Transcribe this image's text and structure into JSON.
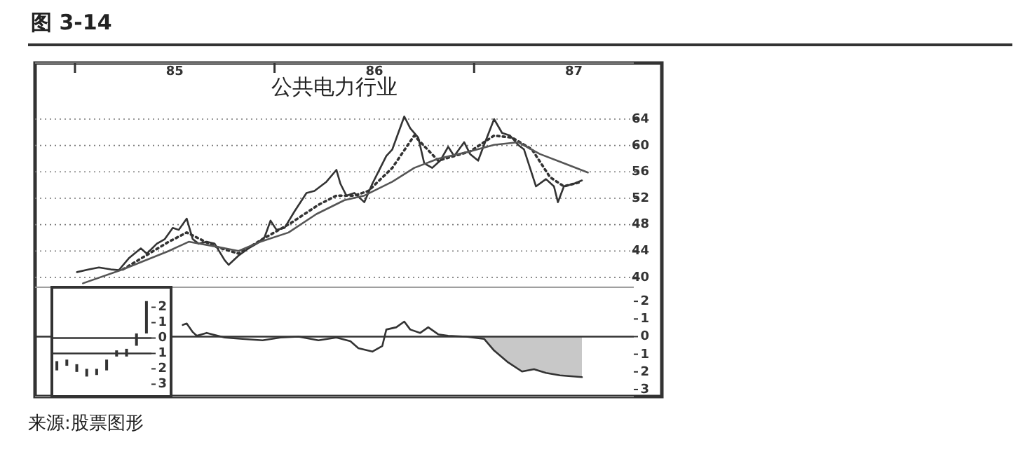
{
  "chart_data": [
    {
      "type": "line",
      "title": "公共电力行业",
      "annotations": [
        "图 3-14",
        "来源:股票图形"
      ],
      "xlim": [
        84.3,
        87.3
      ],
      "ylim": [
        38.5,
        72.5
      ],
      "xticks": [
        {
          "value": 84.5,
          "label": null
        },
        85,
        {
          "value": 85.5,
          "label": null
        },
        86,
        {
          "value": 86.5,
          "label": null
        },
        87
      ],
      "yticks": [
        40,
        44,
        48,
        52,
        56,
        60,
        64
      ],
      "grid": "y",
      "series": [
        {
          "color": "#333333",
          "x": [
            84.51,
            84.57,
            84.62,
            84.68,
            84.72,
            84.77,
            84.83,
            84.86,
            84.91,
            84.95,
            84.99,
            85.02,
            85.06,
            85.09,
            85.12,
            85.16,
            85.2,
            85.25,
            85.27,
            85.32,
            85.37,
            85.41,
            85.45,
            85.48,
            85.51,
            85.55,
            85.6,
            85.66,
            85.7,
            85.76,
            85.81,
            85.83,
            85.86,
            85.9,
            85.95,
            85.99,
            86.06,
            86.09,
            86.15,
            86.18,
            86.22,
            86.25,
            86.29,
            86.33,
            86.37,
            86.4,
            86.45,
            86.48,
            86.52,
            86.55,
            86.6,
            86.64,
            86.68,
            86.72,
            86.75,
            86.81,
            86.86,
            86.9,
            86.92,
            86.95,
            87.0,
            87.04
          ],
          "values": [
            40.8,
            41.2,
            41.5,
            41.2,
            41.1,
            42.9,
            44.4,
            43.6,
            45.1,
            45.8,
            47.5,
            47.2,
            48.9,
            45.8,
            45.1,
            45.4,
            45.1,
            42.6,
            41.9,
            43.3,
            44.4,
            45.1,
            46.1,
            48.6,
            47.2,
            47.5,
            50.0,
            52.8,
            53.1,
            54.5,
            56.3,
            54.2,
            52.4,
            52.8,
            51.4,
            54.2,
            58.4,
            59.4,
            64.4,
            62.6,
            61.2,
            57.3,
            56.6,
            57.7,
            59.8,
            58.4,
            60.5,
            58.7,
            57.7,
            60.1,
            64.0,
            61.9,
            61.5,
            60.1,
            59.4,
            53.8,
            54.9,
            53.8,
            51.4,
            53.8,
            54.2,
            54.7
          ]
        },
        {
          "color": "#333333",
          "line_style": "dotted",
          "x": [
            84.74,
            84.97,
            85.06,
            85.2,
            85.32,
            85.44,
            85.58,
            85.72,
            85.81,
            85.9,
            85.97,
            86.09,
            86.2,
            86.32,
            86.48,
            86.6,
            86.69,
            86.79,
            86.88,
            86.95,
            87.04
          ],
          "values": [
            41.2,
            45.4,
            46.8,
            44.7,
            43.6,
            45.8,
            48.2,
            51.0,
            52.4,
            52.4,
            53.1,
            56.6,
            61.5,
            57.7,
            59.1,
            61.5,
            61.2,
            59.4,
            55.2,
            53.8,
            54.5
          ]
        },
        {
          "color": "#555555",
          "x": [
            84.54,
            84.74,
            84.97,
            85.07,
            85.2,
            85.32,
            85.43,
            85.57,
            85.71,
            85.85,
            85.95,
            86.09,
            86.2,
            86.32,
            86.48,
            86.6,
            86.72,
            86.83,
            86.95,
            87.07
          ],
          "values": [
            39.1,
            41.2,
            44.0,
            45.4,
            44.7,
            44.0,
            45.4,
            46.8,
            49.6,
            51.7,
            52.4,
            54.5,
            56.6,
            58.0,
            59.1,
            60.1,
            60.5,
            58.7,
            57.3,
            55.9
          ]
        }
      ]
    },
    {
      "type": "line",
      "xlim": [
        84.3,
        87.3
      ],
      "ylim": [
        -3.4,
        2.8
      ],
      "tick_labels": "y",
      "yticks": [
        2,
        1,
        0,
        {
          "value": -1,
          "label": "1"
        },
        {
          "value": -2,
          "label": "2"
        },
        {
          "value": -3,
          "label": "3"
        }
      ],
      "ref_lines": [
        {
          "axis": "y",
          "value": 0,
          "color": "#333333"
        }
      ],
      "bands": [
        {
          "axis": "x",
          "from": 86.53,
          "to": 87.04,
          "color": "#c8c8c8"
        }
      ],
      "series": [
        {
          "color": "#333333",
          "x": [
            85.04,
            85.06,
            85.09,
            85.11,
            85.16,
            85.25,
            85.34,
            85.44,
            85.53,
            85.62,
            85.72,
            85.81,
            85.88,
            85.92,
            85.99,
            86.04,
            86.06,
            86.11,
            86.15,
            86.18,
            86.23,
            86.27,
            86.32,
            86.37,
            86.46,
            86.55,
            86.6,
            86.67,
            86.74,
            86.8,
            86.86,
            86.93,
            87.04
          ],
          "values": [
            0.66,
            0.74,
            0.26,
            0.05,
            0.21,
            -0.05,
            -0.13,
            -0.21,
            -0.05,
            0,
            -0.21,
            -0.05,
            -0.26,
            -0.66,
            -0.85,
            -0.53,
            0.4,
            0.53,
            0.85,
            0.4,
            0.21,
            0.53,
            0.13,
            0.05,
            0,
            -0.13,
            -0.79,
            -1.46,
            -1.98,
            -1.85,
            -2.06,
            -2.2,
            -2.3
          ]
        }
      ]
    },
    {
      "type": "bar",
      "color": "#333333",
      "categories": [
        null,
        null,
        null,
        null,
        null,
        null,
        null,
        null,
        null,
        null
      ],
      "values": [
        0.6,
        0.4,
        0.5,
        0.5,
        0.4,
        0.7,
        0.4,
        0.5,
        0.8,
        2.1
      ],
      "base": [
        -2.1,
        -1.8,
        -2.2,
        -2.5,
        -2.4,
        -2.1,
        -1.2,
        -1.2,
        -0.5,
        0.3
      ],
      "ylim": [
        -3.8,
        3.3
      ],
      "yticks": [
        2,
        1,
        0,
        {
          "value": -1,
          "label": "1"
        },
        {
          "value": -2,
          "label": "2"
        },
        {
          "value": -3,
          "label": "3"
        }
      ],
      "ref_lines": [
        {
          "axis": "y",
          "value": 0,
          "color": "#333333"
        },
        {
          "axis": "y",
          "value": -1,
          "color": "#333333"
        }
      ]
    }
  ]
}
